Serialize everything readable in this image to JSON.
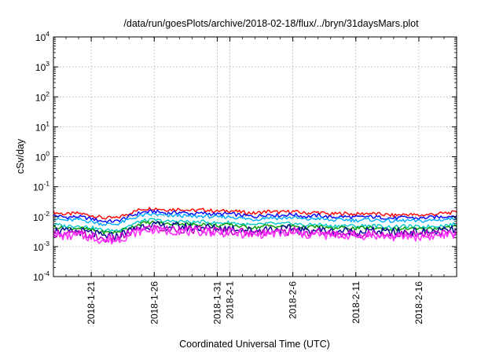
{
  "chart_data": {
    "type": "line",
    "title": "/data/run/goesPlots/archive/2018-02-18/flux/../bryn/31daysMars.plot",
    "xlabel": "Coordinated Universal Time (UTC)",
    "ylabel": "cSv/day",
    "y_scale": "log",
    "ylim": [
      0.0001,
      10000
    ],
    "xlim": [
      "2018-01-18",
      "2018-02-19"
    ],
    "grid": true,
    "y_ticks": [
      {
        "base": "10",
        "exp": "-4",
        "value": 0.0001
      },
      {
        "base": "10",
        "exp": "-3",
        "value": 0.001
      },
      {
        "base": "10",
        "exp": "-2",
        "value": 0.01
      },
      {
        "base": "10",
        "exp": "-1",
        "value": 0.1
      },
      {
        "base": "10",
        "exp": "0",
        "value": 1
      },
      {
        "base": "10",
        "exp": "1",
        "value": 10
      },
      {
        "base": "10",
        "exp": "2",
        "value": 100
      },
      {
        "base": "10",
        "exp": "3",
        "value": 1000
      },
      {
        "base": "10",
        "exp": "4",
        "value": 10000
      }
    ],
    "x_ticks": [
      {
        "label": "2018-1-21",
        "date": "2018-01-21"
      },
      {
        "label": "2018-1-26",
        "date": "2018-01-26"
      },
      {
        "label": "2018-1-31",
        "date": "2018-01-31"
      },
      {
        "label": "2018-2-1",
        "date": "2018-02-01"
      },
      {
        "label": "2018-2-6",
        "date": "2018-02-06"
      },
      {
        "label": "2018-2-11",
        "date": "2018-02-11"
      },
      {
        "label": "2018-2-16",
        "date": "2018-02-16"
      }
    ],
    "x": [
      "2018-01-18",
      "2018-01-19",
      "2018-01-20",
      "2018-01-21",
      "2018-01-22",
      "2018-01-23",
      "2018-01-24",
      "2018-01-25",
      "2018-01-26",
      "2018-01-27",
      "2018-01-28",
      "2018-01-29",
      "2018-01-30",
      "2018-01-31",
      "2018-02-01",
      "2018-02-02",
      "2018-02-03",
      "2018-02-04",
      "2018-02-05",
      "2018-02-06",
      "2018-02-07",
      "2018-02-08",
      "2018-02-09",
      "2018-02-10",
      "2018-02-11",
      "2018-02-12",
      "2018-02-13",
      "2018-02-14",
      "2018-02-15",
      "2018-02-16",
      "2018-02-17",
      "2018-02-18",
      "2018-02-19"
    ],
    "series": [
      {
        "color": "#ff0000",
        "values": [
          0.014,
          0.012,
          0.013,
          0.011,
          0.009,
          0.009,
          0.013,
          0.018,
          0.019,
          0.017,
          0.018,
          0.016,
          0.017,
          0.015,
          0.016,
          0.014,
          0.013,
          0.015,
          0.014,
          0.015,
          0.013,
          0.014,
          0.012,
          0.013,
          0.012,
          0.013,
          0.012,
          0.011,
          0.012,
          0.011,
          0.012,
          0.013,
          0.014
        ]
      },
      {
        "color": "#0000ff",
        "values": [
          0.011,
          0.0095,
          0.01,
          0.0085,
          0.007,
          0.007,
          0.01,
          0.014,
          0.015,
          0.013,
          0.014,
          0.0125,
          0.013,
          0.012,
          0.0125,
          0.011,
          0.01,
          0.012,
          0.011,
          0.012,
          0.01,
          0.011,
          0.0095,
          0.01,
          0.0095,
          0.01,
          0.0095,
          0.0088,
          0.0095,
          0.0088,
          0.0095,
          0.01,
          0.011
        ]
      },
      {
        "color": "#00aaff",
        "values": [
          0.0085,
          0.0075,
          0.008,
          0.0068,
          0.0056,
          0.0056,
          0.008,
          0.011,
          0.012,
          0.0105,
          0.011,
          0.01,
          0.0105,
          0.0095,
          0.01,
          0.0088,
          0.008,
          0.0095,
          0.0088,
          0.0095,
          0.008,
          0.0088,
          0.0075,
          0.008,
          0.0075,
          0.008,
          0.0075,
          0.007,
          0.0075,
          0.007,
          0.0075,
          0.008,
          0.0088
        ]
      },
      {
        "color": "#00c8c8",
        "values": [
          0.0055,
          0.0048,
          0.005,
          0.0043,
          0.0035,
          0.0035,
          0.005,
          0.0072,
          0.0078,
          0.0068,
          0.0072,
          0.0064,
          0.0068,
          0.006,
          0.0064,
          0.0056,
          0.0051,
          0.006,
          0.0056,
          0.006,
          0.0051,
          0.0056,
          0.0048,
          0.0051,
          0.0048,
          0.0051,
          0.0048,
          0.0045,
          0.0048,
          0.0045,
          0.0048,
          0.0051,
          0.0056
        ]
      },
      {
        "color": "#009900",
        "values": [
          0.0047,
          0.004,
          0.0042,
          0.0036,
          0.003,
          0.003,
          0.0042,
          0.006,
          0.0065,
          0.0057,
          0.006,
          0.0054,
          0.0057,
          0.005,
          0.0054,
          0.0047,
          0.0043,
          0.005,
          0.0047,
          0.005,
          0.0043,
          0.0047,
          0.004,
          0.0043,
          0.004,
          0.0043,
          0.004,
          0.0038,
          0.004,
          0.0038,
          0.004,
          0.0043,
          0.0047
        ]
      },
      {
        "color": "#000099",
        "values": [
          0.0036,
          0.0031,
          0.0032,
          0.0028,
          0.0022,
          0.0022,
          0.0033,
          0.0048,
          0.0052,
          0.0045,
          0.0048,
          0.0042,
          0.0045,
          0.004,
          0.0042,
          0.0037,
          0.0034,
          0.004,
          0.0037,
          0.004,
          0.0034,
          0.0037,
          0.0031,
          0.0034,
          0.0031,
          0.0034,
          0.0031,
          0.003,
          0.0031,
          0.003,
          0.0031,
          0.0034,
          0.0037
        ]
      },
      {
        "color": "#cc00cc",
        "values": [
          0.003,
          0.0026,
          0.0027,
          0.0023,
          0.0018,
          0.0018,
          0.0028,
          0.004,
          0.0043,
          0.0037,
          0.004,
          0.0035,
          0.0037,
          0.0033,
          0.0035,
          0.0031,
          0.0028,
          0.0033,
          0.0031,
          0.0033,
          0.0028,
          0.0031,
          0.0026,
          0.0028,
          0.0026,
          0.0028,
          0.0026,
          0.0025,
          0.0026,
          0.0025,
          0.0026,
          0.0028,
          0.0031
        ]
      },
      {
        "color": "#ff33ff",
        "values": [
          0.0026,
          0.0022,
          0.0023,
          0.002,
          0.0016,
          0.0016,
          0.0024,
          0.0034,
          0.0037,
          0.0032,
          0.0034,
          0.003,
          0.0032,
          0.0028,
          0.003,
          0.0026,
          0.0024,
          0.0028,
          0.0026,
          0.0028,
          0.0024,
          0.0026,
          0.0022,
          0.0024,
          0.0022,
          0.0024,
          0.0022,
          0.0021,
          0.0022,
          0.0021,
          0.0022,
          0.0024,
          0.0026
        ]
      }
    ]
  }
}
